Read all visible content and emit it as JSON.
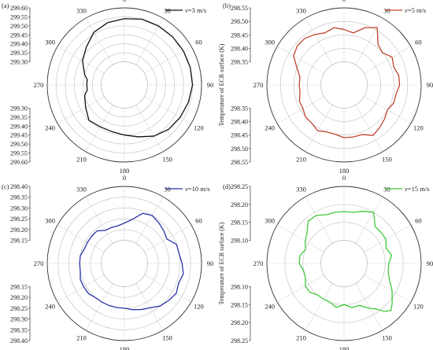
{
  "chart_data": [
    {
      "type": "polar-line",
      "panel_label": "(a)",
      "ylabel": "Temperature of ECR surface (K)",
      "r_ticks": [
        "299.60",
        "299.55",
        "299.50",
        "299.45",
        "299.40",
        "299.35",
        "299.30"
      ],
      "r_ticks_lower": [
        "299.30",
        "299.35",
        "299.40",
        "299.45",
        "299.50",
        "299.55",
        "299.60"
      ],
      "r_min": 299.3,
      "r_max": 299.6,
      "angle_ticks": [
        "0",
        "30",
        "60",
        "90",
        "120",
        "150",
        "180",
        "210",
        "240",
        "270",
        "300",
        "330"
      ],
      "legend_label": "v=3 m/s",
      "color": "#111111",
      "theta": [
        0,
        15,
        30,
        45,
        60,
        75,
        90,
        105,
        120,
        135,
        150,
        165,
        180,
        195,
        210,
        225,
        240,
        255,
        262,
        270,
        278,
        285,
        300,
        315,
        330,
        345,
        360
      ],
      "r": [
        299.54,
        299.55,
        299.55,
        299.55,
        299.55,
        299.55,
        299.55,
        299.54,
        299.53,
        299.52,
        299.5,
        299.47,
        299.45,
        299.44,
        299.44,
        299.45,
        299.42,
        299.4,
        299.38,
        299.38,
        299.38,
        299.4,
        299.44,
        299.47,
        299.51,
        299.53,
        299.54
      ]
    },
    {
      "type": "polar-line",
      "panel_label": "(b)",
      "ylabel": "Temperature of ECR surface (K)",
      "r_ticks": [
        "298.55",
        "298.50",
        "298.45",
        "298.40",
        "298.35"
      ],
      "r_ticks_lower": [
        "298.35",
        "298.40",
        "298.45",
        "298.50",
        "298.55"
      ],
      "r_min": 298.35,
      "r_max": 298.55,
      "angle_ticks": [
        "0",
        "30",
        "60",
        "90",
        "120",
        "150",
        "180",
        "210",
        "240",
        "270",
        "300",
        "330"
      ],
      "legend_label": "v=5 m/s",
      "color": "#c0452f",
      "theta": [
        0,
        10,
        20,
        30,
        40,
        50,
        60,
        70,
        80,
        90,
        100,
        110,
        120,
        130,
        140,
        150,
        160,
        170,
        180,
        190,
        200,
        210,
        220,
        230,
        240,
        250,
        260,
        270,
        280,
        290,
        300,
        310,
        320,
        330,
        340,
        350,
        360
      ],
      "r": [
        298.47,
        298.46,
        298.49,
        298.51,
        298.46,
        298.45,
        298.47,
        298.46,
        298.47,
        298.47,
        298.46,
        298.46,
        298.45,
        298.46,
        298.47,
        298.48,
        298.46,
        298.46,
        298.46,
        298.45,
        298.45,
        298.46,
        298.45,
        298.45,
        298.44,
        298.44,
        298.43,
        298.43,
        298.43,
        298.45,
        298.48,
        298.49,
        298.49,
        298.48,
        298.47,
        298.48,
        298.47
      ]
    },
    {
      "type": "polar-line",
      "panel_label": "(c)",
      "ylabel": "Temperature of ECR surface (K)",
      "r_ticks": [
        "298.40",
        "298.35",
        "298.30",
        "298.25",
        "298.20",
        "298.15"
      ],
      "r_ticks_lower": [
        "298.15",
        "298.20",
        "298.25",
        "298.30",
        "298.35",
        "298.40"
      ],
      "r_min": 298.15,
      "r_max": 298.4,
      "angle_ticks": [
        "0",
        "30",
        "60",
        "90",
        "120",
        "150",
        "180",
        "210",
        "240",
        "270",
        "300",
        "330"
      ],
      "legend_label": "v=10 m/s",
      "color": "#2a33a8",
      "theta": [
        0,
        10,
        20,
        30,
        40,
        50,
        60,
        70,
        80,
        90,
        100,
        110,
        120,
        130,
        140,
        150,
        160,
        170,
        180,
        190,
        200,
        210,
        220,
        230,
        240,
        250,
        260,
        270,
        280,
        290,
        300,
        310,
        320,
        330,
        340,
        350,
        360
      ],
      "r": [
        298.23,
        298.25,
        298.29,
        298.3,
        298.29,
        298.28,
        298.27,
        298.3,
        298.3,
        298.31,
        298.32,
        298.31,
        298.32,
        298.31,
        298.3,
        298.28,
        298.27,
        298.26,
        298.25,
        298.25,
        298.25,
        298.25,
        298.25,
        298.26,
        298.26,
        298.26,
        298.25,
        298.25,
        298.25,
        298.24,
        298.24,
        298.24,
        298.24,
        298.22,
        298.22,
        298.22,
        298.23
      ]
    },
    {
      "type": "polar-line",
      "panel_label": "(d)",
      "ylabel": "Temperature of ECR surface (K)",
      "r_ticks": [
        "298.25",
        "298.20",
        "298.15",
        "298.10"
      ],
      "r_ticks_lower": [
        "298.10",
        "298.15",
        "298.20",
        "298.25"
      ],
      "r_min": 298.1,
      "r_max": 298.25,
      "angle_ticks": [
        "0",
        "30",
        "60",
        "90",
        "120",
        "150",
        "180",
        "210",
        "240",
        "270",
        "300",
        "330"
      ],
      "legend_label": "v=15 m/s",
      "color": "#3fc93a",
      "theta": [
        0,
        10,
        20,
        30,
        40,
        50,
        60,
        70,
        80,
        90,
        100,
        110,
        120,
        130,
        135,
        140,
        145,
        150,
        160,
        170,
        180,
        190,
        200,
        210,
        220,
        230,
        240,
        250,
        260,
        270,
        280,
        290,
        300,
        310,
        320,
        330,
        340,
        350,
        360
      ],
      "r": [
        298.18,
        298.18,
        298.19,
        298.2,
        298.17,
        298.17,
        298.17,
        298.16,
        298.17,
        298.16,
        298.16,
        298.17,
        298.19,
        298.21,
        298.22,
        298.21,
        298.19,
        298.18,
        298.16,
        298.16,
        298.15,
        298.16,
        298.15,
        298.15,
        298.15,
        298.16,
        298.16,
        298.15,
        298.15,
        298.16,
        298.16,
        298.15,
        298.16,
        298.17,
        298.19,
        298.19,
        298.18,
        298.18,
        298.18
      ]
    }
  ]
}
